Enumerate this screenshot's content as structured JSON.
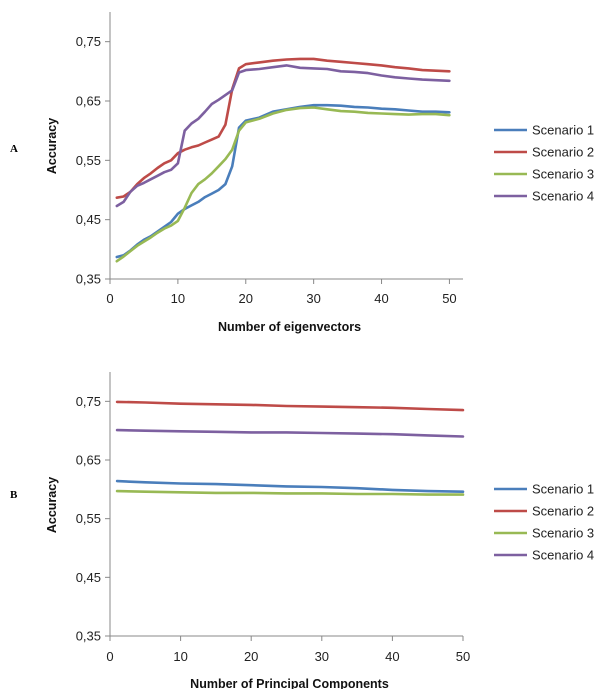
{
  "chart_data": [
    {
      "type": "line",
      "panel_label": "A",
      "xlabel": "Number of eigenvectors",
      "ylabel": "Accuracy",
      "xlim": [
        0,
        52
      ],
      "ylim": [
        0.35,
        0.8
      ],
      "xticks": [
        "0",
        "10",
        "20",
        "30",
        "40",
        "50"
      ],
      "yticks": [
        "0,35",
        "0,45",
        "0,55",
        "0,65",
        "0,75"
      ],
      "grid": false,
      "legend_position": "right",
      "series": [
        {
          "name": "Scenario 1",
          "color": "#4a7ebb",
          "x": [
            1,
            2,
            3,
            4,
            5,
            6,
            7,
            8,
            9,
            10,
            11,
            12,
            13,
            14,
            15,
            16,
            17,
            18,
            19,
            20,
            22,
            24,
            26,
            28,
            30,
            32,
            34,
            36,
            38,
            40,
            42,
            44,
            46,
            48,
            50
          ],
          "y": [
            0.387,
            0.39,
            0.398,
            0.408,
            0.416,
            0.422,
            0.43,
            0.438,
            0.446,
            0.46,
            0.468,
            0.474,
            0.48,
            0.488,
            0.494,
            0.5,
            0.51,
            0.54,
            0.605,
            0.617,
            0.622,
            0.632,
            0.636,
            0.64,
            0.643,
            0.643,
            0.642,
            0.64,
            0.639,
            0.637,
            0.636,
            0.634,
            0.632,
            0.632,
            0.631
          ]
        },
        {
          "name": "Scenario 2",
          "color": "#be4b48",
          "x": [
            1,
            2,
            3,
            4,
            5,
            6,
            7,
            8,
            9,
            10,
            11,
            12,
            13,
            14,
            15,
            16,
            17,
            18,
            19,
            20,
            22,
            24,
            26,
            28,
            30,
            32,
            34,
            36,
            38,
            40,
            42,
            44,
            46,
            48,
            50
          ],
          "y": [
            0.487,
            0.489,
            0.497,
            0.51,
            0.52,
            0.528,
            0.537,
            0.545,
            0.55,
            0.562,
            0.568,
            0.572,
            0.575,
            0.58,
            0.585,
            0.59,
            0.61,
            0.67,
            0.705,
            0.712,
            0.715,
            0.718,
            0.72,
            0.721,
            0.721,
            0.718,
            0.716,
            0.714,
            0.712,
            0.71,
            0.707,
            0.705,
            0.702,
            0.701,
            0.7
          ]
        },
        {
          "name": "Scenario 3",
          "color": "#98b954",
          "x": [
            1,
            2,
            3,
            4,
            5,
            6,
            7,
            8,
            9,
            10,
            11,
            12,
            13,
            14,
            15,
            16,
            17,
            18,
            19,
            20,
            22,
            24,
            26,
            28,
            30,
            32,
            34,
            36,
            38,
            40,
            42,
            44,
            46,
            48,
            50
          ],
          "y": [
            0.38,
            0.388,
            0.397,
            0.406,
            0.413,
            0.42,
            0.428,
            0.435,
            0.44,
            0.448,
            0.47,
            0.495,
            0.51,
            0.518,
            0.528,
            0.54,
            0.552,
            0.568,
            0.6,
            0.614,
            0.62,
            0.629,
            0.635,
            0.638,
            0.639,
            0.636,
            0.633,
            0.632,
            0.63,
            0.629,
            0.628,
            0.627,
            0.628,
            0.628,
            0.626
          ]
        },
        {
          "name": "Scenario 4",
          "color": "#7d60a0",
          "x": [
            1,
            2,
            3,
            4,
            5,
            6,
            7,
            8,
            9,
            10,
            11,
            12,
            13,
            14,
            15,
            16,
            17,
            18,
            19,
            20,
            22,
            24,
            26,
            28,
            30,
            32,
            34,
            36,
            38,
            40,
            42,
            44,
            46,
            48,
            50
          ],
          "y": [
            0.473,
            0.48,
            0.497,
            0.507,
            0.512,
            0.518,
            0.524,
            0.53,
            0.534,
            0.545,
            0.6,
            0.612,
            0.62,
            0.632,
            0.645,
            0.652,
            0.66,
            0.668,
            0.698,
            0.702,
            0.704,
            0.707,
            0.71,
            0.706,
            0.705,
            0.704,
            0.7,
            0.699,
            0.697,
            0.693,
            0.69,
            0.688,
            0.686,
            0.685,
            0.684
          ]
        }
      ]
    },
    {
      "type": "line",
      "panel_label": "B",
      "xlabel": "Number of Principal Components",
      "ylabel": "Accuracy",
      "xlim": [
        0,
        50
      ],
      "ylim": [
        0.35,
        0.8
      ],
      "xticks": [
        "0",
        "10",
        "20",
        "30",
        "40",
        "50"
      ],
      "yticks": [
        "0,35",
        "0,45",
        "0,55",
        "0,65",
        "0,75"
      ],
      "grid": false,
      "legend_position": "right",
      "series": [
        {
          "name": "Scenario 1",
          "color": "#4a7ebb",
          "x": [
            1,
            5,
            10,
            15,
            20,
            25,
            30,
            35,
            40,
            45,
            50
          ],
          "y": [
            0.614,
            0.612,
            0.61,
            0.609,
            0.607,
            0.605,
            0.604,
            0.602,
            0.599,
            0.597,
            0.596
          ]
        },
        {
          "name": "Scenario 2",
          "color": "#be4b48",
          "x": [
            1,
            5,
            10,
            15,
            20,
            25,
            30,
            35,
            40,
            45,
            50
          ],
          "y": [
            0.749,
            0.748,
            0.746,
            0.745,
            0.744,
            0.742,
            0.741,
            0.74,
            0.739,
            0.737,
            0.735
          ]
        },
        {
          "name": "Scenario 3",
          "color": "#98b954",
          "x": [
            1,
            5,
            10,
            15,
            20,
            25,
            30,
            35,
            40,
            45,
            50
          ],
          "y": [
            0.597,
            0.596,
            0.595,
            0.594,
            0.594,
            0.593,
            0.593,
            0.592,
            0.592,
            0.591,
            0.591
          ]
        },
        {
          "name": "Scenario 4",
          "color": "#7d60a0",
          "x": [
            1,
            5,
            10,
            15,
            20,
            25,
            30,
            35,
            40,
            45,
            50
          ],
          "y": [
            0.701,
            0.7,
            0.699,
            0.698,
            0.697,
            0.697,
            0.696,
            0.695,
            0.694,
            0.692,
            0.69
          ]
        }
      ]
    }
  ]
}
